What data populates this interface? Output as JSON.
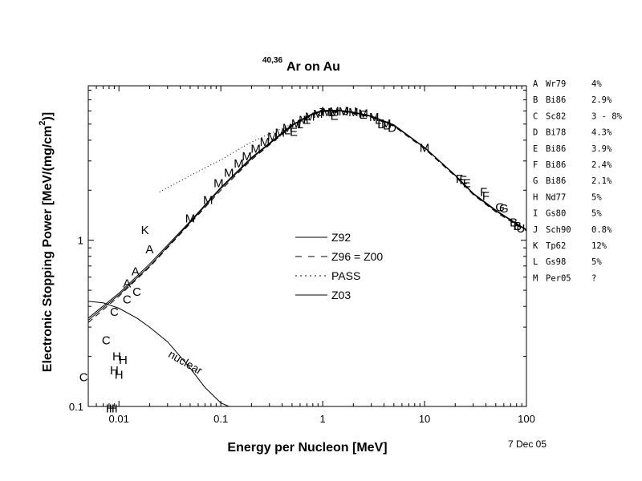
{
  "chart_data": {
    "type": "scatter",
    "title": {
      "superscript": "40,36",
      "main": "Ar on Au"
    },
    "xlabel": "Energy per Nucleon [MeV]",
    "ylabel": "Electronic Stopping Power [MeV/(mg/cm",
    "ylabel_sup": "2",
    "ylabel_tail": ")]",
    "xscale": "log",
    "yscale": "log",
    "xlim": [
      0.005,
      100
    ],
    "ylim": [
      0.1,
      8.5
    ],
    "x_ticks": [
      {
        "value": 0.01,
        "label": "0.01"
      },
      {
        "value": 0.1,
        "label": "0.1"
      },
      {
        "value": 1,
        "label": "1"
      },
      {
        "value": 10,
        "label": "10"
      },
      {
        "value": 100,
        "label": "100"
      }
    ],
    "y_ticks": [
      {
        "value": 0.1,
        "label": "0.1"
      },
      {
        "value": 1,
        "label": "1"
      }
    ],
    "date": "7 Dec 05",
    "legend": [
      {
        "name": "Z92",
        "style": "solid"
      },
      {
        "name": "Z96 = Z00",
        "style": "dashed"
      },
      {
        "name": "PASS",
        "style": "dotted"
      },
      {
        "name": "Z03",
        "style": "solid"
      }
    ],
    "curves": [
      {
        "name": "Z92",
        "style": "solid",
        "x": [
          0.005,
          0.01,
          0.02,
          0.05,
          0.1,
          0.2,
          0.5,
          0.8,
          1.0,
          1.5,
          2.0,
          3.0,
          5.0,
          10,
          20,
          30,
          50,
          70,
          100
        ],
        "y": [
          0.33,
          0.47,
          0.7,
          1.28,
          2.05,
          3.1,
          4.9,
          5.75,
          6.0,
          6.0,
          5.85,
          5.55,
          4.9,
          3.6,
          2.45,
          1.9,
          1.5,
          1.32,
          1.15
        ]
      },
      {
        "name": "Z96 = Z00",
        "style": "dashed",
        "x": [
          0.005,
          0.01,
          0.02,
          0.05,
          0.1,
          0.2,
          0.5,
          0.8,
          1.0,
          1.5,
          2.0,
          3.0,
          5.0,
          10,
          20,
          30,
          50,
          70,
          100
        ],
        "y": [
          0.32,
          0.46,
          0.69,
          1.26,
          2.0,
          3.05,
          4.85,
          5.7,
          5.95,
          5.95,
          5.8,
          5.5,
          4.85,
          3.55,
          2.42,
          1.88,
          1.48,
          1.3,
          1.14
        ]
      },
      {
        "name": "PASS",
        "style": "dotted",
        "x": [
          0.025,
          0.05,
          0.1,
          0.2,
          0.35,
          0.5
        ],
        "y": [
          1.95,
          2.45,
          3.05,
          3.9,
          4.55,
          5.0
        ]
      },
      {
        "name": "Z03",
        "style": "solid",
        "x": [
          0.005,
          0.01,
          0.02,
          0.05,
          0.1,
          0.2,
          0.5,
          0.8,
          1.0,
          1.5,
          2.0,
          3.0,
          5.0,
          10,
          20,
          30,
          50,
          70,
          100
        ],
        "y": [
          0.34,
          0.48,
          0.72,
          1.3,
          2.08,
          3.15,
          4.95,
          5.8,
          6.05,
          6.05,
          5.9,
          5.6,
          4.95,
          3.62,
          2.47,
          1.92,
          1.52,
          1.33,
          1.16
        ]
      },
      {
        "name": "nuclear",
        "style": "solid",
        "x": [
          0.005,
          0.007,
          0.01,
          0.015,
          0.02,
          0.03,
          0.05,
          0.07,
          0.1,
          0.12
        ],
        "y": [
          0.43,
          0.42,
          0.39,
          0.34,
          0.3,
          0.245,
          0.17,
          0.13,
          0.105,
          0.1
        ]
      }
    ],
    "curve_label": {
      "text": "nuclear",
      "x": 0.03,
      "y": 0.2
    },
    "markers": [
      {
        "label": "A",
        "x": 0.012,
        "y": 0.55
      },
      {
        "label": "A",
        "x": 0.0145,
        "y": 0.65
      },
      {
        "label": "A",
        "x": 0.02,
        "y": 0.88
      },
      {
        "label": "C",
        "x": 0.0045,
        "y": 0.15
      },
      {
        "label": "C",
        "x": 0.0075,
        "y": 0.25
      },
      {
        "label": "C",
        "x": 0.009,
        "y": 0.37
      },
      {
        "label": "C",
        "x": 0.012,
        "y": 0.44
      },
      {
        "label": "C",
        "x": 0.015,
        "y": 0.49
      },
      {
        "label": "H",
        "x": 0.009,
        "y": 0.165
      },
      {
        "label": "H",
        "x": 0.0095,
        "y": 0.2
      },
      {
        "label": "H",
        "x": 0.01,
        "y": 0.155
      },
      {
        "label": "H",
        "x": 0.011,
        "y": 0.19
      },
      {
        "label": "H",
        "x": 0.0082,
        "y": 0.097
      },
      {
        "label": "H",
        "x": 0.0088,
        "y": 0.097
      },
      {
        "label": "K",
        "x": 0.018,
        "y": 1.15
      },
      {
        "label": "M",
        "x": 0.05,
        "y": 1.35
      },
      {
        "label": "M",
        "x": 0.075,
        "y": 1.75
      },
      {
        "label": "M",
        "x": 0.095,
        "y": 2.2
      },
      {
        "label": "M",
        "x": 0.12,
        "y": 2.55
      },
      {
        "label": "M",
        "x": 0.15,
        "y": 2.9
      },
      {
        "label": "M",
        "x": 0.18,
        "y": 3.2
      },
      {
        "label": "M",
        "x": 0.22,
        "y": 3.55
      },
      {
        "label": "M",
        "x": 0.27,
        "y": 3.9
      },
      {
        "label": "M",
        "x": 0.32,
        "y": 4.2
      },
      {
        "label": "M",
        "x": 0.38,
        "y": 4.45
      },
      {
        "label": "M",
        "x": 0.45,
        "y": 4.75
      },
      {
        "label": "M",
        "x": 0.55,
        "y": 5.05
      },
      {
        "label": "M",
        "x": 0.65,
        "y": 5.3
      },
      {
        "label": "M",
        "x": 0.75,
        "y": 5.55
      },
      {
        "label": "M",
        "x": 0.9,
        "y": 5.75
      },
      {
        "label": "M",
        "x": 1.1,
        "y": 5.9
      },
      {
        "label": "M",
        "x": 1.3,
        "y": 5.95
      },
      {
        "label": "M",
        "x": 1.6,
        "y": 5.95
      },
      {
        "label": "M",
        "x": 2.0,
        "y": 5.9
      },
      {
        "label": "M",
        "x": 2.5,
        "y": 5.8
      },
      {
        "label": "M",
        "x": 3.2,
        "y": 5.5
      },
      {
        "label": "M",
        "x": 4.2,
        "y": 5.05
      },
      {
        "label": "M",
        "x": 10,
        "y": 3.6
      },
      {
        "label": "L",
        "x": 0.45,
        "y": 4.6
      },
      {
        "label": "L",
        "x": 0.6,
        "y": 5.0
      },
      {
        "label": "L",
        "x": 1.2,
        "y": 5.9
      },
      {
        "label": "L",
        "x": 3.5,
        "y": 5.3
      },
      {
        "label": "L",
        "x": 80,
        "y": 1.22
      },
      {
        "label": "E",
        "x": 0.52,
        "y": 4.5
      },
      {
        "label": "E",
        "x": 0.7,
        "y": 5.3
      },
      {
        "label": "E",
        "x": 1.3,
        "y": 5.6
      },
      {
        "label": "E",
        "x": 2.5,
        "y": 5.7
      },
      {
        "label": "E",
        "x": 24,
        "y": 2.3
      },
      {
        "label": "E",
        "x": 26,
        "y": 2.2
      },
      {
        "label": "I",
        "x": 1.0,
        "y": 6.0
      },
      {
        "label": "I",
        "x": 1.4,
        "y": 6.0
      },
      {
        "label": "I",
        "x": 2.1,
        "y": 5.95
      },
      {
        "label": "J",
        "x": 0.95,
        "y": 5.9
      },
      {
        "label": "J",
        "x": 1.7,
        "y": 6.0
      },
      {
        "label": "D",
        "x": 3.8,
        "y": 5.0
      },
      {
        "label": "D",
        "x": 4.3,
        "y": 4.9
      },
      {
        "label": "D",
        "x": 4.8,
        "y": 4.75
      },
      {
        "label": "F",
        "x": 22,
        "y": 2.35
      },
      {
        "label": "F",
        "x": 38,
        "y": 1.95
      },
      {
        "label": "F",
        "x": 40,
        "y": 1.85
      },
      {
        "label": "G",
        "x": 55,
        "y": 1.58
      },
      {
        "label": "G",
        "x": 60,
        "y": 1.55
      },
      {
        "label": "B",
        "x": 75,
        "y": 1.28
      },
      {
        "label": "B",
        "x": 82,
        "y": 1.22
      },
      {
        "label": "U",
        "x": 88,
        "y": 1.18
      }
    ],
    "references": [
      {
        "key": "A",
        "ref": "Wr79",
        "err": "4%"
      },
      {
        "key": "B",
        "ref": "Bi86",
        "err": "2.9%"
      },
      {
        "key": "C",
        "ref": "Sc82",
        "err": "3 - 8%"
      },
      {
        "key": "D",
        "ref": "Bi78",
        "err": "4.3%"
      },
      {
        "key": "E",
        "ref": "Bi86",
        "err": "3.9%"
      },
      {
        "key": "F",
        "ref": "Bi86",
        "err": "2.4%"
      },
      {
        "key": "G",
        "ref": "Bi86",
        "err": "2.1%"
      },
      {
        "key": "H",
        "ref": "Nd77",
        "err": "5%"
      },
      {
        "key": "I",
        "ref": "Gs80",
        "err": "5%"
      },
      {
        "key": "J",
        "ref": "Sch90",
        "err": "0.8%"
      },
      {
        "key": "K",
        "ref": "Tp62",
        "err": "12%"
      },
      {
        "key": "L",
        "ref": "Gs98",
        "err": "5%"
      },
      {
        "key": "M",
        "ref": "Per05",
        "err": "?"
      }
    ]
  }
}
